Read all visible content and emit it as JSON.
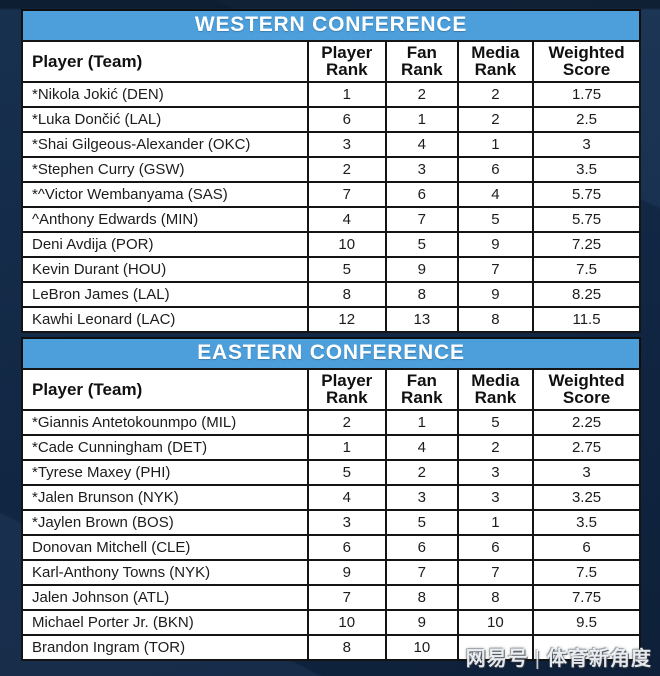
{
  "theme": {
    "accent-blue": "#4c9fdb",
    "background-navy": "#13294a",
    "table-border": "#141414",
    "cell-bg": "#ffffff",
    "band-text": "#ffffff",
    "body-text": "#1c1c1c"
  },
  "chart_data": [
    {
      "type": "table",
      "title": "WESTERN CONFERENCE",
      "columns": [
        "Player (Team)",
        "Player\nRank",
        "Fan\nRank",
        "Media\nRank",
        "Weighted\nScore"
      ],
      "rows": [
        [
          "*Nikola Jokić (DEN)",
          "1",
          "2",
          "2",
          "1.75"
        ],
        [
          "*Luka Dončić (LAL)",
          "6",
          "1",
          "2",
          "2.5"
        ],
        [
          "*Shai Gilgeous-Alexander (OKC)",
          "3",
          "4",
          "1",
          "3"
        ],
        [
          "*Stephen Curry (GSW)",
          "2",
          "3",
          "6",
          "3.5"
        ],
        [
          "*^Victor Wembanyama (SAS)",
          "7",
          "6",
          "4",
          "5.75"
        ],
        [
          "^Anthony Edwards (MIN)",
          "4",
          "7",
          "5",
          "5.75"
        ],
        [
          "Deni Avdija (POR)",
          "10",
          "5",
          "9",
          "7.25"
        ],
        [
          "Kevin Durant (HOU)",
          "5",
          "9",
          "7",
          "7.5"
        ],
        [
          "LeBron James (LAL)",
          "8",
          "8",
          "9",
          "8.25"
        ],
        [
          "Kawhi Leonard (LAC)",
          "12",
          "13",
          "8",
          "11.5"
        ]
      ]
    },
    {
      "type": "table",
      "title": "EASTERN CONFERENCE",
      "columns": [
        "Player (Team)",
        "Player\nRank",
        "Fan\nRank",
        "Media\nRank",
        "Weighted\nScore"
      ],
      "rows": [
        [
          "*Giannis Antetokounmpo (MIL)",
          "2",
          "1",
          "5",
          "2.25"
        ],
        [
          "*Cade Cunningham (DET)",
          "1",
          "4",
          "2",
          "2.75"
        ],
        [
          "*Tyrese Maxey (PHI)",
          "5",
          "2",
          "3",
          "3"
        ],
        [
          "*Jalen Brunson (NYK)",
          "4",
          "3",
          "3",
          "3.25"
        ],
        [
          "*Jaylen Brown (BOS)",
          "3",
          "5",
          "1",
          "3.5"
        ],
        [
          "Donovan Mitchell (CLE)",
          "6",
          "6",
          "6",
          "6"
        ],
        [
          "Karl-Anthony Towns (NYK)",
          "9",
          "7",
          "7",
          "7.5"
        ],
        [
          "Jalen Johnson (ATL)",
          "7",
          "8",
          "8",
          "7.75"
        ],
        [
          "Michael Porter Jr. (BKN)",
          "10",
          "9",
          "10",
          "9.5"
        ],
        [
          "Brandon Ingram (TOR)",
          "8",
          "10",
          "",
          ""
        ]
      ]
    }
  ],
  "watermark": {
    "brand": "网易号",
    "divider": "|",
    "channel": "体育新角度"
  }
}
